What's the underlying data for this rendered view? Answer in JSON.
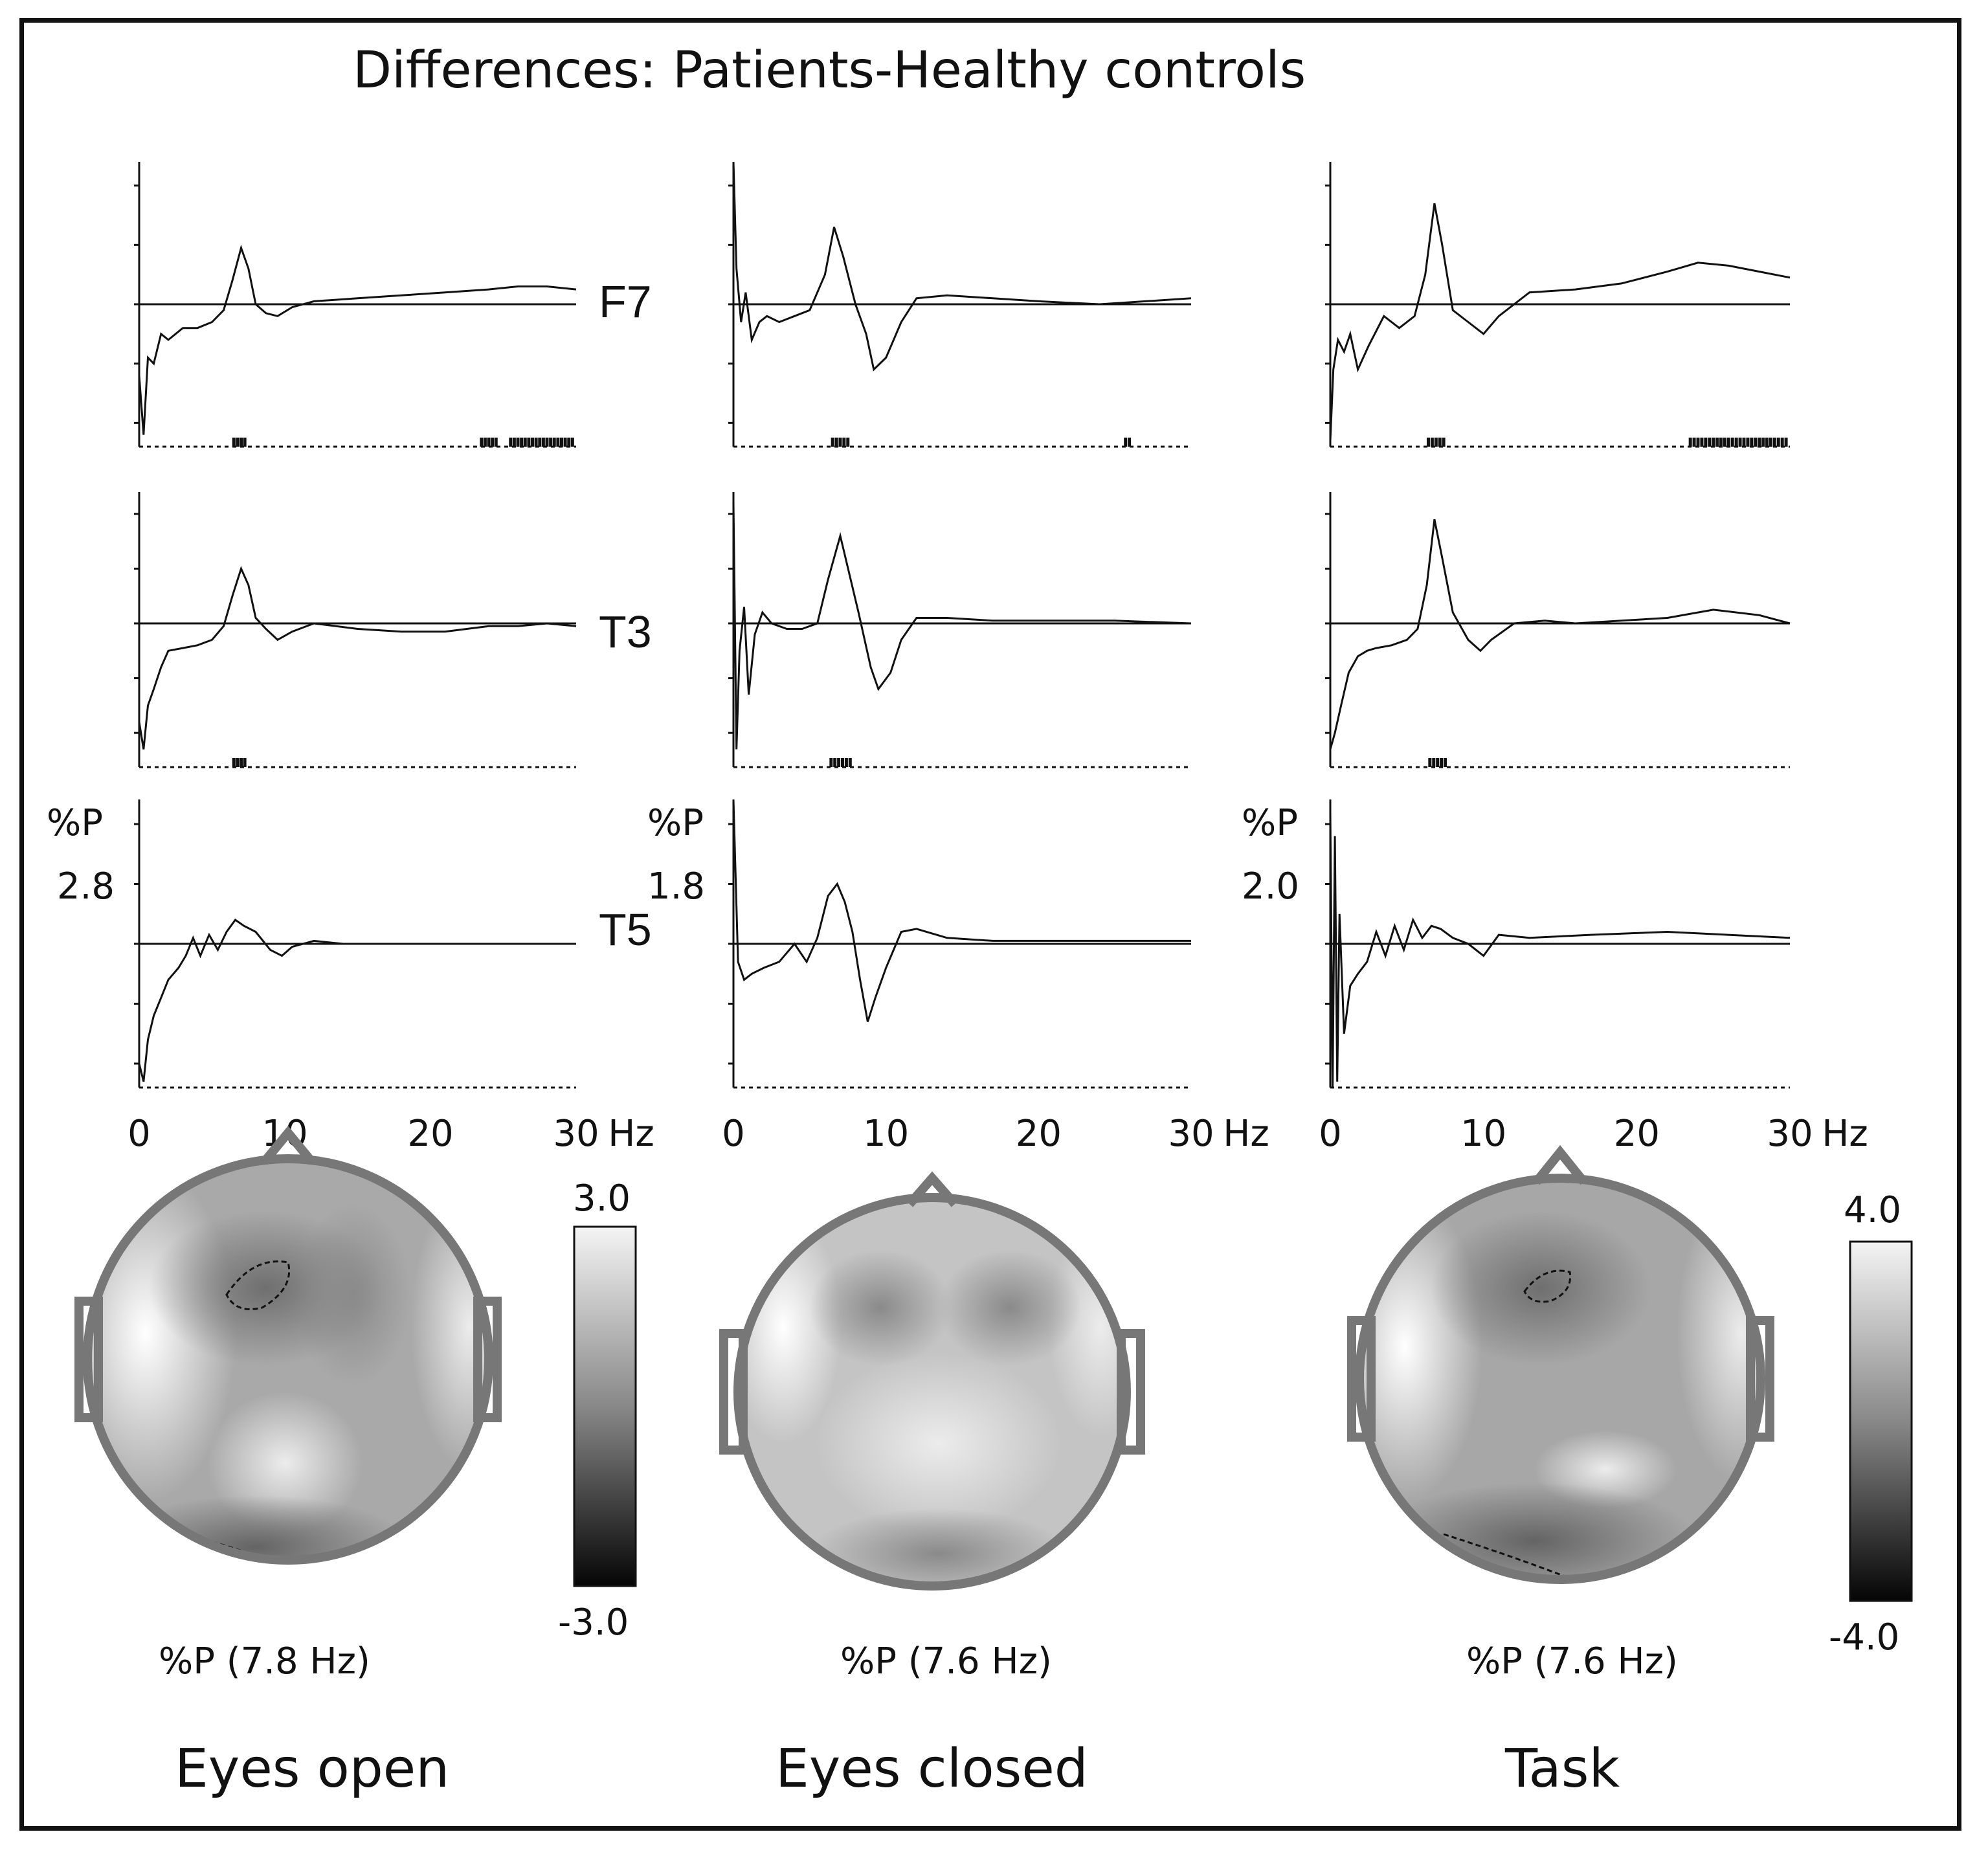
{
  "title": "Differences: Patients-Healthy controls",
  "x_unit": "Hz",
  "y_unit": "%P",
  "x_ticks": [
    "0",
    "10",
    "20",
    "30"
  ],
  "channels": [
    "F7",
    "T3",
    "T5"
  ],
  "conditions": [
    {
      "name": "Eyes open",
      "scale_label": "2.8",
      "map_label": "%P (7.8 Hz)"
    },
    {
      "name": "Eyes closed",
      "scale_label": "1.8",
      "map_label": "%P (7.6 Hz)"
    },
    {
      "name": "Task",
      "scale_label": "2.0",
      "map_label": "%P (7.6 Hz)"
    }
  ],
  "colorbars": [
    {
      "id": "left",
      "max": "3.0",
      "min": "-3.0"
    },
    {
      "id": "right",
      "max": "4.0",
      "min": "-4.0"
    }
  ],
  "colors": {
    "ink": "#111111",
    "head_outline": "#777777",
    "background": "#ffffff"
  },
  "chart_data": {
    "type": "line",
    "title": "Differences: Patients-Healthy controls",
    "xlabel": "Hz",
    "ylabel": "%P",
    "xlim": [
      0,
      30
    ],
    "ylim": [
      -2.4,
      2.4
    ],
    "panels": [
      {
        "condition": "Eyes open",
        "channel": "F7",
        "ylim": [
          -2.4,
          2.4
        ],
        "x": [
          0,
          0.3,
          0.6,
          1,
          1.5,
          2,
          3,
          4,
          5,
          5.8,
          6.4,
          7,
          7.5,
          8,
          8.7,
          9.5,
          10.5,
          12,
          15,
          18,
          21,
          24,
          26,
          28,
          30
        ],
        "y": [
          -1.2,
          -2.2,
          -0.9,
          -1.0,
          -0.5,
          -0.6,
          -0.4,
          -0.4,
          -0.3,
          -0.1,
          0.4,
          0.95,
          0.6,
          0.0,
          -0.15,
          -0.2,
          -0.05,
          0.05,
          0.1,
          0.15,
          0.2,
          0.25,
          0.3,
          0.3,
          0.25
        ],
        "significant_ranges": [
          [
            6.5,
            7.4
          ],
          [
            23.5,
            24.5
          ],
          [
            25.5,
            29.8
          ]
        ]
      },
      {
        "condition": "Eyes open",
        "channel": "T3",
        "ylim": [
          -2.4,
          2.4
        ],
        "x": [
          0,
          0.3,
          0.6,
          1,
          1.5,
          2,
          3,
          4,
          5,
          5.8,
          6.4,
          7,
          7.5,
          8,
          8.7,
          9.5,
          10.5,
          12,
          15,
          18,
          21,
          24,
          26,
          28,
          30
        ],
        "y": [
          -1.8,
          -2.3,
          -1.5,
          -1.2,
          -0.8,
          -0.5,
          -0.45,
          -0.4,
          -0.3,
          -0.05,
          0.5,
          1.0,
          0.7,
          0.1,
          -0.1,
          -0.3,
          -0.15,
          0.0,
          -0.1,
          -0.15,
          -0.15,
          -0.05,
          -0.05,
          0.0,
          -0.05
        ],
        "significant_ranges": [
          [
            6.5,
            7.4
          ]
        ]
      },
      {
        "condition": "Eyes open",
        "channel": "T5",
        "ylim": [
          -2.4,
          2.4
        ],
        "x": [
          0,
          0.3,
          0.6,
          1,
          1.5,
          2,
          2.7,
          3.2,
          3.7,
          4.2,
          4.8,
          5.4,
          6,
          6.6,
          7.2,
          8,
          9,
          9.8,
          10.5,
          12,
          14,
          17,
          20,
          25,
          30
        ],
        "y": [
          -2.0,
          -2.3,
          -1.6,
          -1.2,
          -0.9,
          -0.6,
          -0.4,
          -0.2,
          0.1,
          -0.2,
          0.15,
          -0.1,
          0.2,
          0.4,
          0.3,
          0.2,
          -0.1,
          -0.2,
          -0.05,
          0.05,
          0.0,
          0.0,
          0.0,
          0.0,
          0.0
        ],
        "significant_ranges": []
      },
      {
        "condition": "Eyes closed",
        "channel": "F7",
        "ylim": [
          -2.4,
          2.4
        ],
        "x": [
          0,
          0.2,
          0.5,
          0.8,
          1.2,
          1.7,
          2.2,
          3,
          4,
          5,
          6,
          6.6,
          7.2,
          8,
          8.7,
          9.2,
          10,
          11,
          12,
          14,
          17,
          20,
          24,
          27,
          30
        ],
        "y": [
          2.4,
          0.6,
          -0.3,
          0.2,
          -0.6,
          -0.3,
          -0.2,
          -0.3,
          -0.2,
          -0.1,
          0.5,
          1.3,
          0.8,
          0.0,
          -0.5,
          -1.1,
          -0.9,
          -0.3,
          0.1,
          0.15,
          0.1,
          0.05,
          0.0,
          0.05,
          0.1
        ],
        "significant_ranges": [
          [
            6.5,
            7.6
          ],
          [
            25.7,
            26.1
          ]
        ]
      },
      {
        "condition": "Eyes closed",
        "channel": "T3",
        "ylim": [
          -2.4,
          2.4
        ],
        "x": [
          0,
          0.2,
          0.4,
          0.7,
          1,
          1.4,
          1.9,
          2.5,
          3.5,
          4.5,
          5.5,
          6.2,
          7,
          7.6,
          8.2,
          9,
          9.5,
          10.3,
          11,
          12,
          14,
          17,
          21,
          25,
          30
        ],
        "y": [
          2.2,
          -2.3,
          -0.5,
          0.3,
          -1.3,
          -0.2,
          0.2,
          0.0,
          -0.1,
          -0.1,
          0.0,
          0.8,
          1.6,
          0.9,
          0.2,
          -0.8,
          -1.2,
          -0.9,
          -0.3,
          0.1,
          0.1,
          0.05,
          0.05,
          0.05,
          0.0
        ],
        "significant_ranges": [
          [
            6.4,
            7.8
          ]
        ]
      },
      {
        "condition": "Eyes closed",
        "channel": "T5",
        "ylim": [
          -2.4,
          2.4
        ],
        "x": [
          0,
          0.3,
          0.7,
          1.2,
          2,
          3,
          4,
          4.8,
          5.5,
          6.2,
          6.8,
          7.3,
          7.8,
          8.3,
          8.8,
          9.3,
          10,
          11,
          12,
          14,
          17,
          21,
          25,
          28,
          30
        ],
        "y": [
          2.4,
          -0.3,
          -0.6,
          -0.5,
          -0.4,
          -0.3,
          0.0,
          -0.3,
          0.1,
          0.8,
          1.0,
          0.7,
          0.2,
          -0.6,
          -1.3,
          -0.9,
          -0.4,
          0.2,
          0.25,
          0.1,
          0.05,
          0.05,
          0.05,
          0.05,
          0.05
        ],
        "significant_ranges": []
      },
      {
        "condition": "Task",
        "channel": "F7",
        "ylim": [
          -2.4,
          2.4
        ],
        "x": [
          0,
          0.2,
          0.5,
          0.9,
          1.3,
          1.8,
          2.5,
          3.5,
          4.5,
          5.5,
          6.2,
          6.8,
          7.3,
          8,
          9,
          10,
          11,
          13,
          16,
          19,
          22,
          24,
          26,
          28,
          30
        ],
        "y": [
          -2.3,
          -1.1,
          -0.6,
          -0.8,
          -0.5,
          -1.1,
          -0.7,
          -0.2,
          -0.4,
          -0.2,
          0.5,
          1.7,
          1.0,
          -0.1,
          -0.3,
          -0.5,
          -0.2,
          0.2,
          0.25,
          0.35,
          0.55,
          0.7,
          0.65,
          0.55,
          0.45
        ],
        "significant_ranges": [
          [
            6.4,
            7.4
          ],
          [
            23.5,
            29.8
          ]
        ]
      },
      {
        "condition": "Task",
        "channel": "T3",
        "ylim": [
          -2.4,
          2.4
        ],
        "x": [
          0,
          0.3,
          0.7,
          1.2,
          1.8,
          2.4,
          3,
          4,
          5,
          5.7,
          6.3,
          6.8,
          7.3,
          8,
          9,
          9.8,
          10.5,
          12,
          14,
          16,
          19,
          22,
          25,
          28,
          30
        ],
        "y": [
          -2.3,
          -2.0,
          -1.5,
          -0.9,
          -0.6,
          -0.5,
          -0.45,
          -0.4,
          -0.3,
          -0.1,
          0.7,
          1.9,
          1.2,
          0.2,
          -0.3,
          -0.5,
          -0.3,
          0.0,
          0.05,
          0.0,
          0.05,
          0.1,
          0.25,
          0.15,
          0.0
        ],
        "significant_ranges": [
          [
            6.5,
            7.5
          ]
        ]
      },
      {
        "condition": "Task",
        "channel": "T5",
        "ylim": [
          -2.4,
          2.4
        ],
        "x": [
          0,
          0.15,
          0.3,
          0.45,
          0.6,
          0.9,
          1.3,
          1.8,
          2.4,
          3,
          3.6,
          4.2,
          4.8,
          5.4,
          6,
          6.6,
          7.2,
          8,
          9,
          10,
          11,
          13,
          17,
          22,
          30
        ],
        "y": [
          2.2,
          -2.4,
          1.8,
          -2.3,
          0.5,
          -1.5,
          -0.7,
          -0.5,
          -0.3,
          0.2,
          -0.2,
          0.3,
          -0.1,
          0.4,
          0.1,
          0.3,
          0.25,
          0.1,
          0.0,
          -0.2,
          0.15,
          0.1,
          0.15,
          0.2,
          0.1
        ],
        "significant_ranges": []
      }
    ]
  }
}
